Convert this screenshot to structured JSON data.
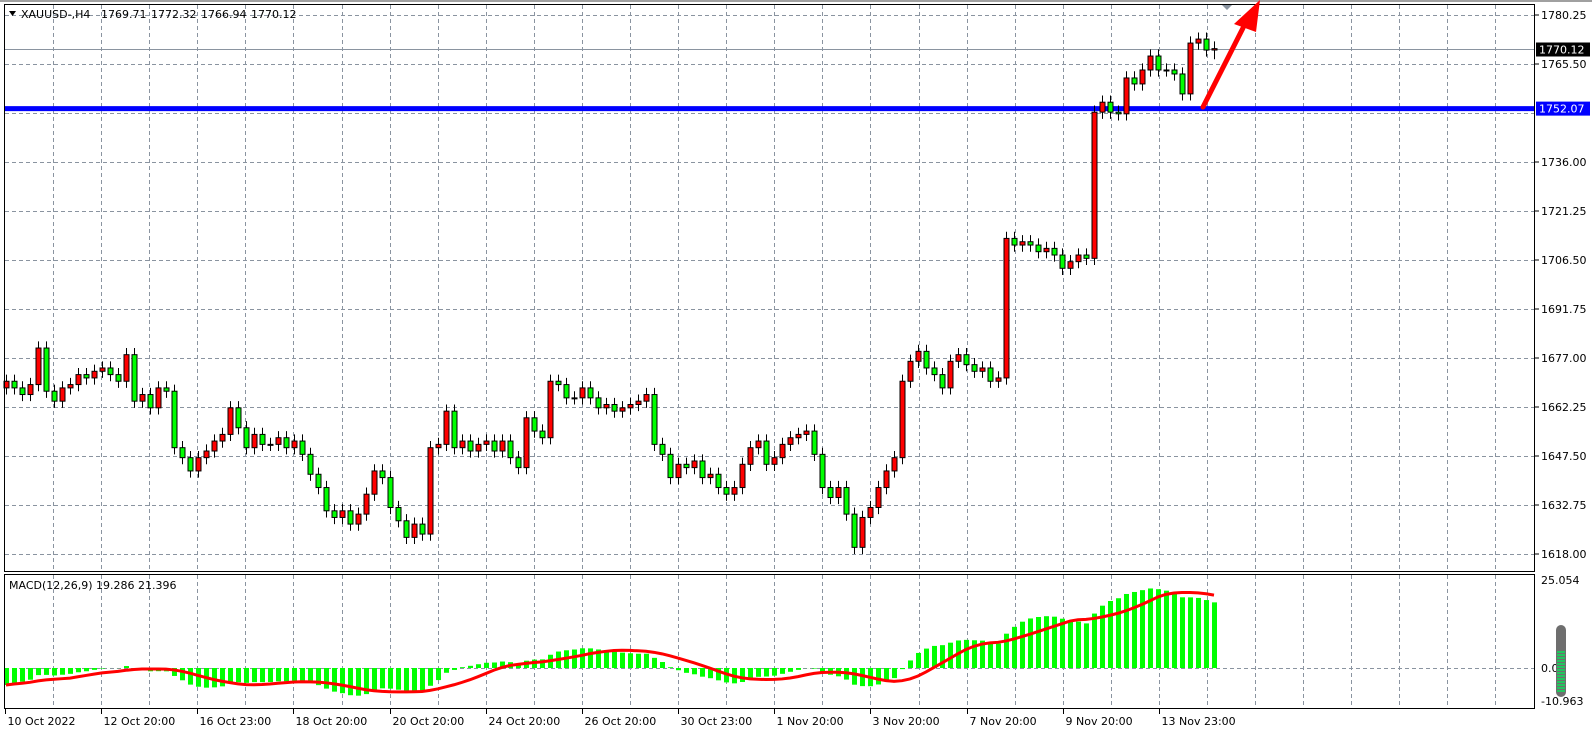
{
  "header": {
    "symbol": "XAUUSD-,H4",
    "open": "1769.71",
    "high": "1772.32",
    "low": "1766.94",
    "close": "1770.12",
    "menu_icon": "triangle-down-icon"
  },
  "chart_data": {
    "type": "candlestick",
    "timeframe": "H4",
    "closes": [
      1670,
      1668,
      1666,
      1669,
      1680,
      1667,
      1664,
      1668,
      1669,
      1672,
      1671,
      1673,
      1674,
      1672,
      1670,
      1678,
      1664,
      1666,
      1662,
      1668,
      1667,
      1650,
      1647,
      1643,
      1647,
      1649,
      1652,
      1654,
      1662,
      1656,
      1650,
      1654,
      1651,
      1651,
      1653,
      1650,
      1652,
      1648,
      1642,
      1638,
      1631,
      1629,
      1631,
      1627,
      1630,
      1636,
      1643,
      1641,
      1632,
      1628,
      1623,
      1627,
      1624,
      1650,
      1651,
      1661,
      1650,
      1652,
      1649,
      1651,
      1652,
      1649,
      1652,
      1647,
      1644,
      1659,
      1655,
      1653,
      1670,
      1669,
      1665,
      1665,
      1668,
      1665,
      1662,
      1663,
      1661,
      1662,
      1663,
      1664,
      1666,
      1651,
      1648,
      1641,
      1645,
      1644,
      1646,
      1641,
      1642,
      1638,
      1636,
      1638,
      1645,
      1650,
      1652,
      1645,
      1647,
      1651,
      1653,
      1654,
      1655,
      1648,
      1638,
      1635,
      1638,
      1630,
      1620,
      1629,
      1632,
      1638,
      1643,
      1647,
      1670,
      1676,
      1679,
      1674,
      1672,
      1668,
      1676,
      1678,
      1675,
      1673,
      1674,
      1670,
      1671,
      1713,
      1711,
      1712,
      1711,
      1709,
      1710,
      1708,
      1704,
      1706,
      1708,
      1707,
      1751,
      1754,
      1751,
      1750.5,
      1761.3,
      1759.5,
      1763.7,
      1767.9,
      1763.7,
      1763.7,
      1762.5,
      1756.5,
      1771.8,
      1773,
      1769.71,
      1770.12
    ],
    "first_open": 1668,
    "last_candle": {
      "open": 1769.71,
      "high": 1772.32,
      "low": 1766.94,
      "close": 1770.12
    },
    "price_axis": {
      "ylim": [
        1618.0,
        1780.25
      ],
      "ticks": [
        "1780.25",
        "1765.50",
        "1736.00",
        "1721.25",
        "1706.50",
        "1691.75",
        "1677.00",
        "1662.25",
        "1647.50",
        "1632.75",
        "1618.00"
      ]
    },
    "time_labels": [
      "10 Oct 2022",
      "12 Oct 20:00",
      "16 Oct 23:00",
      "18 Oct 20:00",
      "20 Oct 20:00",
      "24 Oct 20:00",
      "26 Oct 20:00",
      "30 Oct 23:00",
      "1 Nov 20:00",
      "3 Nov 20:00",
      "7 Nov 20:00",
      "9 Nov 20:00",
      "13 Nov 23:00"
    ],
    "current_price": {
      "value": 1770.12,
      "label": "1770.12"
    },
    "horizontal_line": {
      "value": 1752.07,
      "label": "1752.07",
      "color": "#0000ff"
    },
    "grid": true,
    "colors": {
      "bull": "#ff0000",
      "bear": "#00ff00",
      "macd_hist": "#00ff00",
      "signal": "#ff0000",
      "arrow": "#ff0000"
    },
    "annotation": {
      "type": "arrow",
      "direction": "up-right",
      "color": "#ff0000"
    },
    "macd": {
      "label": "MACD(12,26,9) 19.286 21.396",
      "fast": 12,
      "slow": 26,
      "signal": 9,
      "value": 19.286,
      "signal_value": 21.396,
      "ylim": [
        -10.963,
        25.054
      ],
      "ticks": [
        "25.054",
        "0.00",
        "-10.963"
      ]
    }
  }
}
